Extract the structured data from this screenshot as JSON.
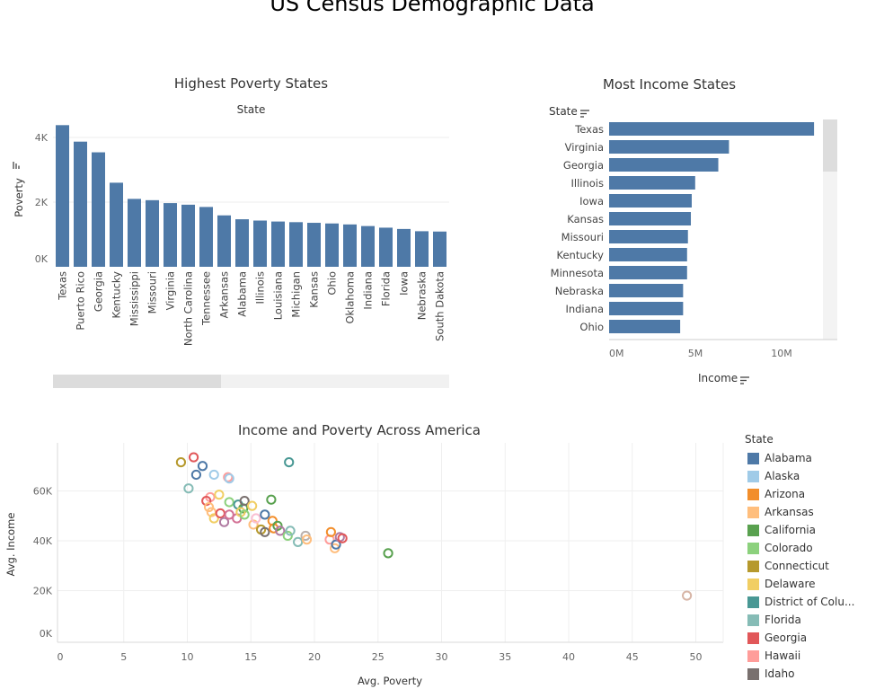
{
  "page_title": "US Census Demographic Data",
  "poverty_chart": {
    "title": "Highest Poverty States",
    "header": "State",
    "ylabel": "Poverty",
    "yticks": [
      "0K",
      "2K",
      "4K"
    ]
  },
  "income_chart": {
    "title": "Most Income States",
    "header": "State",
    "xlabel": "Income",
    "xticks": [
      "0M",
      "5M",
      "10M"
    ]
  },
  "scatter_chart": {
    "title": "Income and Poverty Across America",
    "xlabel": "Avg. Poverty",
    "ylabel": "Avg. Income",
    "xticks": [
      "0",
      "5",
      "10",
      "15",
      "20",
      "25",
      "30",
      "35",
      "40",
      "45",
      "50"
    ],
    "yticks": [
      "0K",
      "20K",
      "40K",
      "60K"
    ]
  },
  "legend": {
    "title": "State",
    "items": [
      {
        "label": "Alabama",
        "color": "#4e79a7"
      },
      {
        "label": "Alaska",
        "color": "#a0cbe8"
      },
      {
        "label": "Arizona",
        "color": "#f28e2b"
      },
      {
        "label": "Arkansas",
        "color": "#ffbe7d"
      },
      {
        "label": "California",
        "color": "#59a14f"
      },
      {
        "label": "Colorado",
        "color": "#8cd17d"
      },
      {
        "label": "Connecticut",
        "color": "#b6992d"
      },
      {
        "label": "Delaware",
        "color": "#f1ce63"
      },
      {
        "label": "District of Colu...",
        "color": "#499894"
      },
      {
        "label": "Florida",
        "color": "#86bcb6"
      },
      {
        "label": "Georgia",
        "color": "#e15759"
      },
      {
        "label": "Hawaii",
        "color": "#ff9d9a"
      },
      {
        "label": "Idaho",
        "color": "#79706e"
      }
    ]
  },
  "chart_data": [
    {
      "type": "bar",
      "title": "Highest Poverty States",
      "xlabel": "State",
      "ylabel": "Poverty",
      "ylim": [
        0,
        4500
      ],
      "color": "#4e79a7",
      "categories": [
        "Texas",
        "Puerto Rico",
        "Georgia",
        "Kentucky",
        "Mississippi",
        "Missouri",
        "Virginia",
        "North Carolina",
        "Tennessee",
        "Arkansas",
        "Alabama",
        "Illinois",
        "Louisiana",
        "Michigan",
        "Kansas",
        "Ohio",
        "Oklahoma",
        "Indiana",
        "Florida",
        "Iowa",
        "Nebraska",
        "South Dakota"
      ],
      "values": [
        4380,
        3870,
        3540,
        2600,
        2100,
        2060,
        1970,
        1920,
        1850,
        1590,
        1470,
        1430,
        1400,
        1380,
        1360,
        1340,
        1310,
        1260,
        1210,
        1170,
        1100,
        1090
      ]
    },
    {
      "type": "bar",
      "orientation": "horizontal",
      "title": "Most Income States",
      "xlabel": "Income",
      "ylabel": "State",
      "xlim": [
        0,
        13000000
      ],
      "color": "#4e79a7",
      "categories": [
        "Texas",
        "Virginia",
        "Georgia",
        "Illinois",
        "Iowa",
        "Kansas",
        "Missouri",
        "Kentucky",
        "Minnesota",
        "Nebraska",
        "Indiana",
        "Ohio"
      ],
      "values": [
        11880000,
        6950000,
        6330000,
        4990000,
        4790000,
        4740000,
        4570000,
        4520000,
        4520000,
        4290000,
        4290000,
        4120000
      ]
    },
    {
      "type": "scatter",
      "title": "Income and Poverty Across America",
      "xlabel": "Avg. Poverty",
      "ylabel": "Avg. Income",
      "xlim": [
        0,
        52
      ],
      "ylim": [
        0,
        78000
      ],
      "points": [
        {
          "x": 9.5,
          "y": 71500,
          "color": "#b6992d"
        },
        {
          "x": 10.5,
          "y": 73500,
          "color": "#e15759"
        },
        {
          "x": 11.2,
          "y": 70000,
          "color": "#4e79a7"
        },
        {
          "x": 10.7,
          "y": 66500,
          "color": "#4e79a7"
        },
        {
          "x": 12.1,
          "y": 66500,
          "color": "#a0cbe8"
        },
        {
          "x": 13.2,
          "y": 65500,
          "color": "#ff9d9a"
        },
        {
          "x": 13.3,
          "y": 65000,
          "color": "#a0cbe8"
        },
        {
          "x": 10.1,
          "y": 61000,
          "color": "#86bcb6"
        },
        {
          "x": 18.0,
          "y": 71500,
          "color": "#499894"
        },
        {
          "x": 11.8,
          "y": 57500,
          "color": "#ff9d9a"
        },
        {
          "x": 12.5,
          "y": 58500,
          "color": "#f1ce63"
        },
        {
          "x": 11.5,
          "y": 56000,
          "color": "#e15759"
        },
        {
          "x": 11.7,
          "y": 53500,
          "color": "#ffbe7d"
        },
        {
          "x": 11.9,
          "y": 51500,
          "color": "#ffbe7d"
        },
        {
          "x": 12.1,
          "y": 49000,
          "color": "#f1ce63"
        },
        {
          "x": 12.6,
          "y": 51000,
          "color": "#e15759"
        },
        {
          "x": 12.9,
          "y": 47500,
          "color": "#b07aa1"
        },
        {
          "x": 13.3,
          "y": 50500,
          "color": "#d37295"
        },
        {
          "x": 13.3,
          "y": 55500,
          "color": "#8cd17d"
        },
        {
          "x": 13.9,
          "y": 49000,
          "color": "#d37295"
        },
        {
          "x": 14.0,
          "y": 54500,
          "color": "#499894"
        },
        {
          "x": 14.4,
          "y": 53000,
          "color": "#59a14f"
        },
        {
          "x": 14.2,
          "y": 51500,
          "color": "#f1ce63"
        },
        {
          "x": 14.5,
          "y": 56000,
          "color": "#79706e"
        },
        {
          "x": 14.5,
          "y": 50500,
          "color": "#8cd17d"
        },
        {
          "x": 15.1,
          "y": 54000,
          "color": "#f1ce63"
        },
        {
          "x": 15.2,
          "y": 46500,
          "color": "#ffbe7d"
        },
        {
          "x": 15.4,
          "y": 49000,
          "color": "#fabfd2"
        },
        {
          "x": 15.8,
          "y": 44500,
          "color": "#b6992d"
        },
        {
          "x": 16.1,
          "y": 50500,
          "color": "#4e79a7"
        },
        {
          "x": 16.1,
          "y": 43500,
          "color": "#79706e"
        },
        {
          "x": 16.6,
          "y": 56500,
          "color": "#59a14f"
        },
        {
          "x": 16.7,
          "y": 48000,
          "color": "#f28e2b"
        },
        {
          "x": 16.8,
          "y": 45000,
          "color": "#f28e2b"
        },
        {
          "x": 17.1,
          "y": 46000,
          "color": "#59a14f"
        },
        {
          "x": 17.3,
          "y": 44000,
          "color": "#b07aa1"
        },
        {
          "x": 17.9,
          "y": 42000,
          "color": "#8cd17d"
        },
        {
          "x": 18.1,
          "y": 44000,
          "color": "#86bcb6"
        },
        {
          "x": 18.7,
          "y": 39500,
          "color": "#86bcb6"
        },
        {
          "x": 19.3,
          "y": 42000,
          "color": "#bab0ac"
        },
        {
          "x": 19.4,
          "y": 40500,
          "color": "#ffbe7d"
        },
        {
          "x": 21.2,
          "y": 40500,
          "color": "#ff9d9a"
        },
        {
          "x": 21.3,
          "y": 43500,
          "color": "#f28e2b"
        },
        {
          "x": 21.6,
          "y": 37000,
          "color": "#ffbe7d"
        },
        {
          "x": 21.7,
          "y": 38500,
          "color": "#4e79a7"
        },
        {
          "x": 22.0,
          "y": 41500,
          "color": "#b07aa1"
        },
        {
          "x": 22.2,
          "y": 41000,
          "color": "#e15759"
        },
        {
          "x": 25.8,
          "y": 35000,
          "color": "#59a14f"
        },
        {
          "x": 49.3,
          "y": 18000,
          "color": "#d7b5a6"
        }
      ]
    }
  ]
}
